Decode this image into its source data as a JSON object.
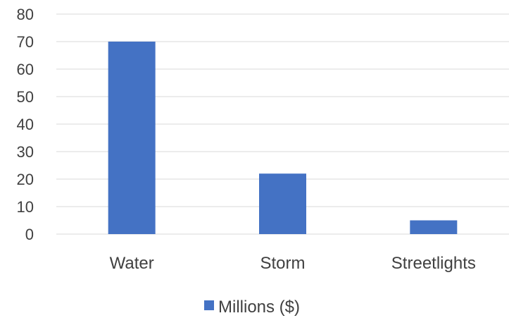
{
  "chart_data": {
    "type": "bar",
    "categories": [
      "Water",
      "Storm",
      "Streetlights"
    ],
    "series": [
      {
        "name": "Millions ($)",
        "values": [
          70,
          22,
          5
        ],
        "color": "#4472C4"
      }
    ],
    "yticks": [
      0,
      10,
      20,
      30,
      40,
      50,
      60,
      70,
      80
    ],
    "ylim": [
      0,
      80
    ],
    "grid": true,
    "gridColor": "#D9D9D9",
    "legend": "bottom"
  }
}
